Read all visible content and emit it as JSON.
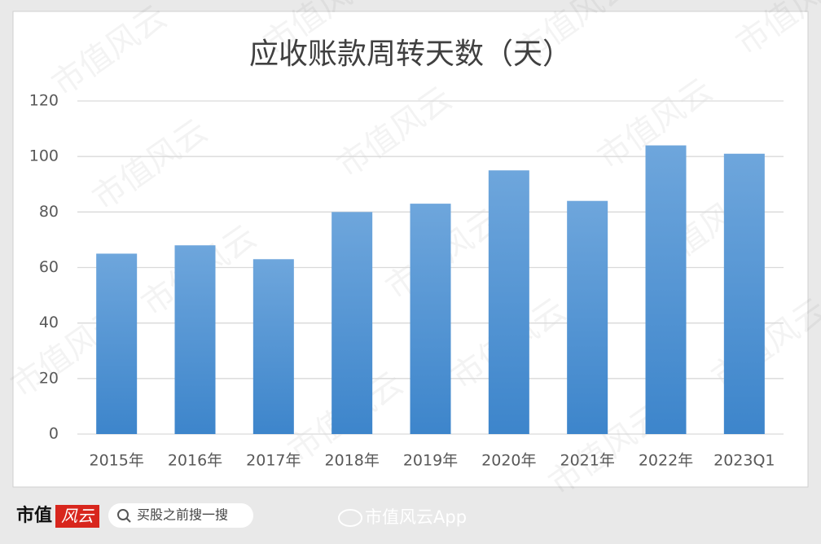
{
  "chart_data": {
    "type": "bar",
    "title": "应收账款周转天数（天）",
    "categories": [
      "2015年",
      "2016年",
      "2017年",
      "2018年",
      "2019年",
      "2020年",
      "2021年",
      "2022年",
      "2023Q1"
    ],
    "values": [
      65,
      68,
      63,
      80,
      83,
      95,
      84,
      104,
      101
    ],
    "color": "#4a8fd3",
    "ylim": [
      0,
      120
    ],
    "yticks": [
      0,
      20,
      40,
      60,
      80,
      100,
      120
    ],
    "grid": true
  },
  "watermark": "市值风云",
  "footer": {
    "logo_main": "市值",
    "logo_accent": "风云",
    "search": "买股之前搜一搜",
    "source": "市值风云App"
  }
}
